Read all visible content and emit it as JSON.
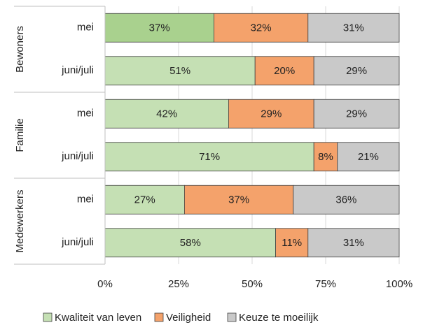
{
  "chart_data": {
    "type": "stacked_bar_horizontal",
    "groups": [
      "Bewoners",
      "Familie",
      "Medewerkers"
    ],
    "categories": [
      "mei",
      "juni/juli",
      "mei",
      "juni/juli",
      "mei",
      "juni/juli"
    ],
    "series": [
      {
        "name": "Kwaliteit van leven",
        "color": "#c5e0b4",
        "colors": [
          "#a9d18e",
          "#c5e0b4",
          "#c5e0b4",
          "#c5e0b4",
          "#c5e0b4",
          "#c5e0b4"
        ],
        "values": [
          37,
          51,
          42,
          71,
          27,
          58
        ],
        "value_labels": [
          "37%",
          "51%",
          "42%",
          "71%",
          "27%",
          "58%"
        ]
      },
      {
        "name": "Veiligheid",
        "color": "#f4a26b",
        "values": [
          32,
          20,
          29,
          8,
          37,
          11
        ],
        "value_labels": [
          "32%",
          "20%",
          "29%",
          "8%",
          "37%",
          "11%"
        ]
      },
      {
        "name": "Keuze te moeilijk",
        "color": "#c9c9c9",
        "values": [
          31,
          29,
          29,
          21,
          36,
          31
        ],
        "value_labels": [
          "31%",
          "29%",
          "29%",
          "21%",
          "36%",
          "31%"
        ]
      }
    ],
    "xlim": [
      0,
      100
    ],
    "xticks": [
      {
        "value": 0,
        "label": "0%"
      },
      {
        "value": 25,
        "label": "25%"
      },
      {
        "value": 50,
        "label": "50%"
      },
      {
        "value": 75,
        "label": "75%"
      },
      {
        "value": 100,
        "label": "100%"
      }
    ],
    "grid": true,
    "legend": "bottom"
  }
}
